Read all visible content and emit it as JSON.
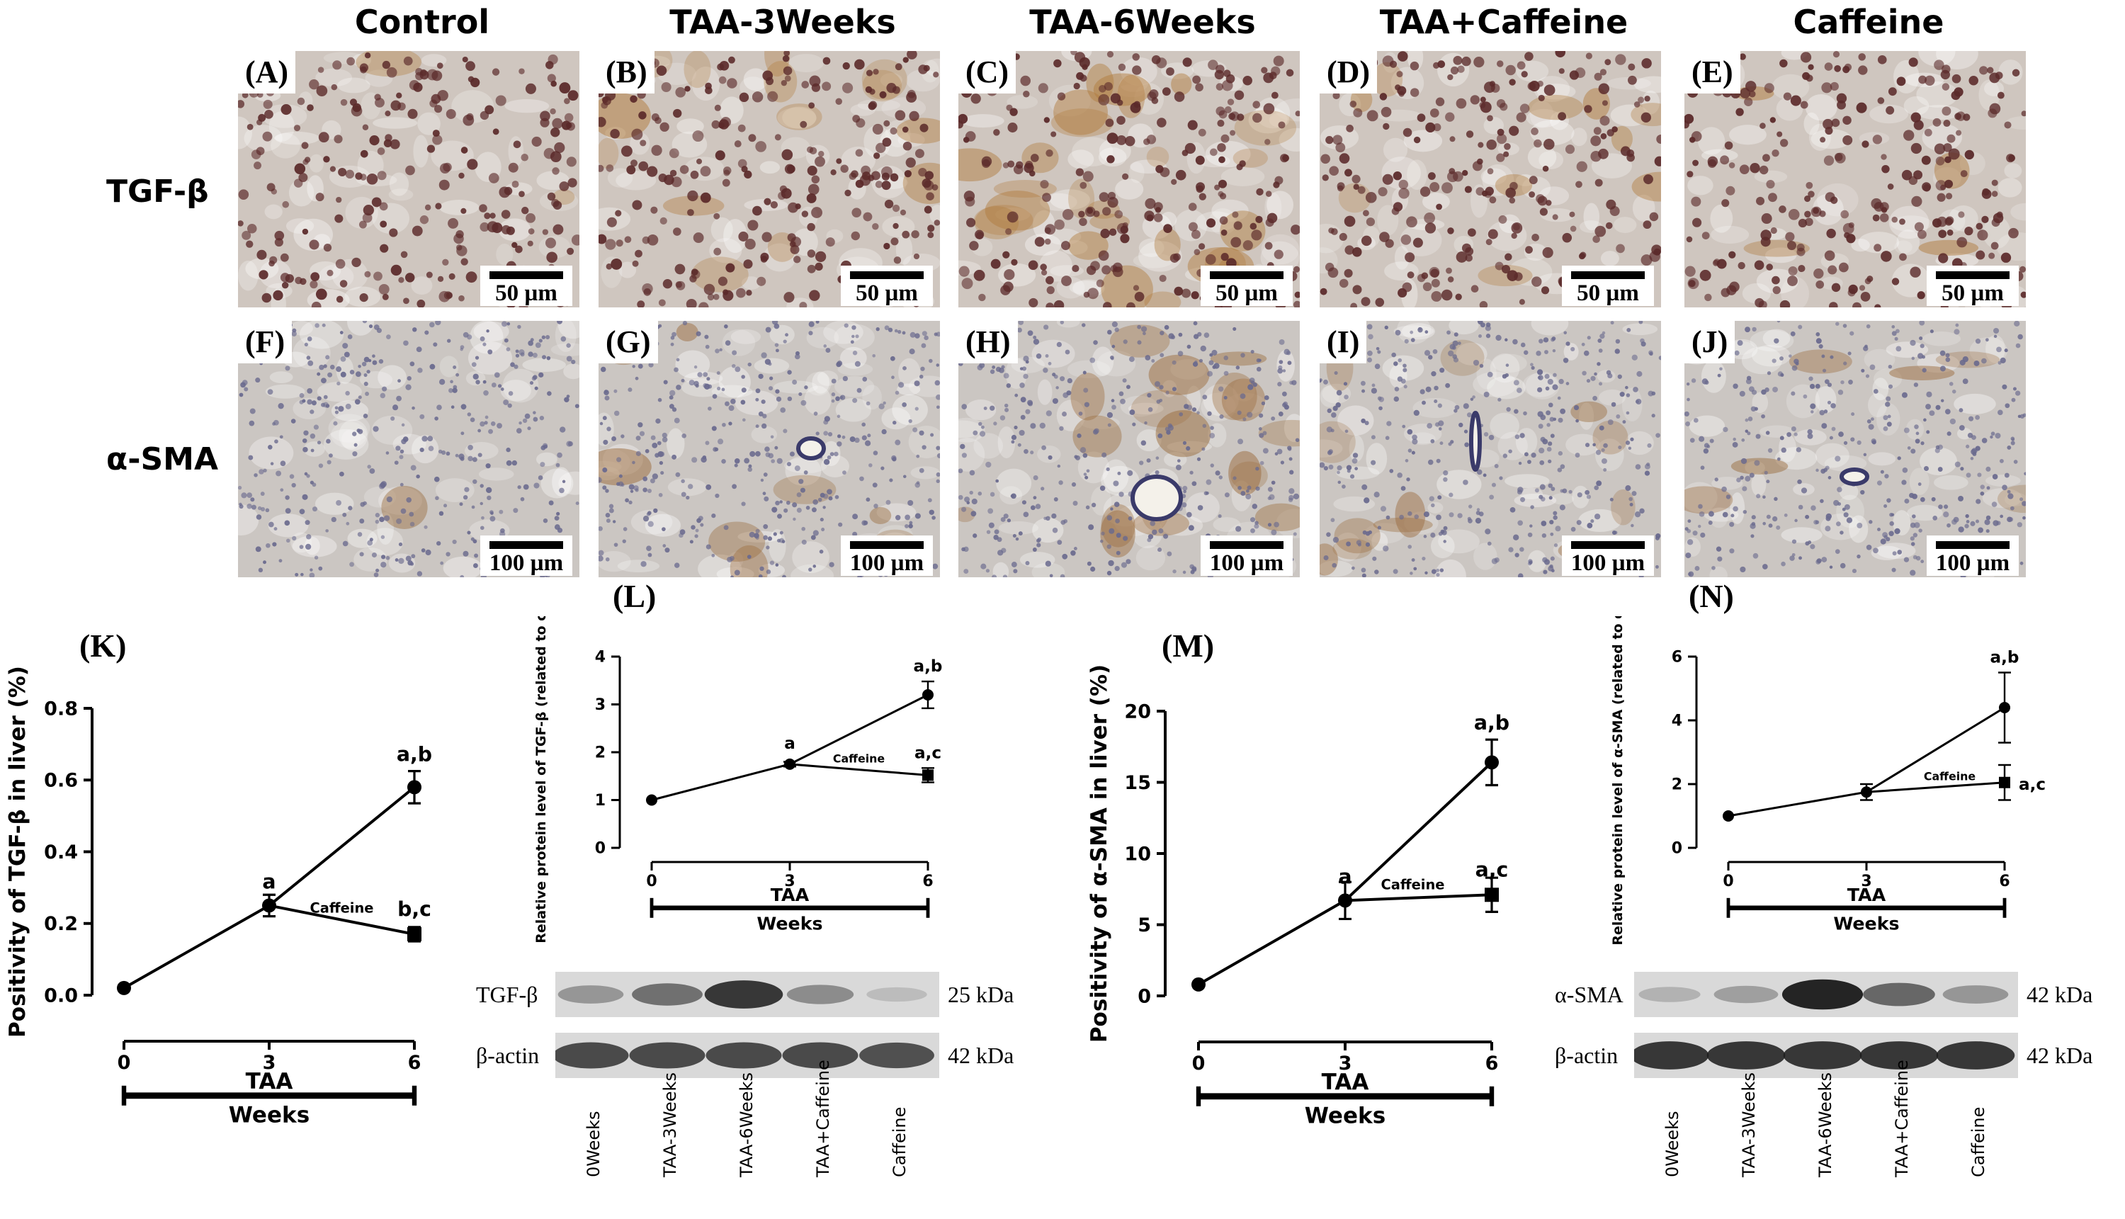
{
  "column_headers": [
    "Control",
    "TAA-3Weeks",
    "TAA-6Weeks",
    "TAA+Caffeine",
    "Caffeine"
  ],
  "row_headers": {
    "tgf": "TGF-β",
    "sma": "α-SMA"
  },
  "micrographs": {
    "tgf_row": [
      {
        "label": "(A)",
        "scale": "50 µm"
      },
      {
        "label": "(B)",
        "scale": "50 µm"
      },
      {
        "label": "(C)",
        "scale": "50 µm"
      },
      {
        "label": "(D)",
        "scale": "50 µm"
      },
      {
        "label": "(E)",
        "scale": "50 µm"
      }
    ],
    "sma_row": [
      {
        "label": "(F)",
        "scale": "100 µm"
      },
      {
        "label": "(G)",
        "scale": "100 µm"
      },
      {
        "label": "(H)",
        "scale": "100 µm"
      },
      {
        "label": "(I)",
        "scale": "100 µm"
      },
      {
        "label": "(J)",
        "scale": "100 µm"
      }
    ]
  },
  "graph_labels": {
    "K": "(K)",
    "L": "(L)",
    "M": "(M)",
    "N": "(N)"
  },
  "chart_data": [
    {
      "id": "K",
      "type": "line",
      "ylabel": "Positivity of TGF-β in liver (%)",
      "xlabel": "TAA",
      "xlabel2": "Weeks",
      "ylim": [
        0,
        0.8
      ],
      "yticks": [
        "0.0",
        "0.2",
        "0.4",
        "0.6",
        "0.8"
      ],
      "xticks": [
        "0",
        "3",
        "6"
      ],
      "series": [
        {
          "name": "",
          "x": [
            0,
            3,
            6
          ],
          "y": [
            0.02,
            0.25,
            0.58
          ],
          "err": [
            0,
            0.03,
            0.045
          ],
          "marker": "circle",
          "labels": [
            "",
            "a",
            "a,b"
          ]
        },
        {
          "name": "Caffeine",
          "x": [
            3,
            6
          ],
          "y": [
            0.25,
            0.17
          ],
          "err": [
            0,
            0.02
          ],
          "marker": "square",
          "labels": [
            "",
            "b,c"
          ]
        }
      ]
    },
    {
      "id": "L",
      "type": "line",
      "ylabel": "Relative protein level of TGF-β (related to control)",
      "xlabel": "TAA",
      "xlabel2": "Weeks",
      "ylim": [
        0,
        4
      ],
      "yticks": [
        "0",
        "1",
        "2",
        "3",
        "4"
      ],
      "xticks": [
        "0",
        "3",
        "6"
      ],
      "series": [
        {
          "name": "",
          "x": [
            0,
            3,
            6
          ],
          "y": [
            1.0,
            1.75,
            3.2
          ],
          "err": [
            0,
            0.05,
            0.28
          ],
          "marker": "circle",
          "labels": [
            "",
            "a",
            "a,b"
          ]
        },
        {
          "name": "Caffeine",
          "x": [
            3,
            6
          ],
          "y": [
            1.75,
            1.52
          ],
          "err": [
            0,
            0.15
          ],
          "marker": "square",
          "labels": [
            "",
            "a,c"
          ]
        }
      ]
    },
    {
      "id": "M",
      "type": "line",
      "ylabel": "Positivity of α-SMA in liver (%)",
      "xlabel": "TAA",
      "xlabel2": "Weeks",
      "ylim": [
        0,
        20
      ],
      "yticks": [
        "0",
        "5",
        "10",
        "15",
        "20"
      ],
      "xticks": [
        "0",
        "3",
        "6"
      ],
      "series": [
        {
          "name": "",
          "x": [
            0,
            3,
            6
          ],
          "y": [
            0.8,
            6.7,
            16.4
          ],
          "err": [
            0,
            1.3,
            1.6
          ],
          "marker": "circle",
          "labels": [
            "",
            "a",
            "a,b"
          ]
        },
        {
          "name": "Caffeine",
          "x": [
            3,
            6
          ],
          "y": [
            6.7,
            7.1
          ],
          "err": [
            0,
            1.2
          ],
          "marker": "square",
          "labels": [
            "",
            "a,c"
          ]
        }
      ]
    },
    {
      "id": "N",
      "type": "line",
      "ylabel": "Relative protein level of α-SMA (related to control)",
      "xlabel": "TAA",
      "xlabel2": "Weeks",
      "ylim": [
        0,
        6
      ],
      "yticks": [
        "0",
        "2",
        "4",
        "6"
      ],
      "xticks": [
        "0",
        "3",
        "6"
      ],
      "series": [
        {
          "name": "",
          "x": [
            0,
            3,
            6
          ],
          "y": [
            1.0,
            1.75,
            4.4
          ],
          "err": [
            0,
            0.25,
            1.1
          ],
          "marker": "circle",
          "labels": [
            "",
            "",
            "a,b"
          ]
        },
        {
          "name": "Caffeine",
          "x": [
            3,
            6
          ],
          "y": [
            1.75,
            2.05
          ],
          "err": [
            0,
            0.55
          ],
          "marker": "square",
          "labels": [
            "",
            "a,c"
          ]
        }
      ]
    }
  ],
  "blots": [
    {
      "id": "L",
      "rows": [
        {
          "name": "TGF-β",
          "kda": "25 kDa",
          "intensity": [
            0.35,
            0.55,
            0.85,
            0.4,
            0.15
          ]
        },
        {
          "name": "β-actin",
          "kda": "42 kDa",
          "intensity": [
            0.75,
            0.75,
            0.75,
            0.75,
            0.72
          ]
        }
      ],
      "lanes": [
        "0Weeks",
        "TAA-3Weeks",
        "TAA-6Weeks",
        "TAA+Caffeine",
        "Caffeine"
      ]
    },
    {
      "id": "N",
      "rows": [
        {
          "name": "α-SMA",
          "kda": "42 kDa",
          "intensity": [
            0.2,
            0.3,
            0.95,
            0.6,
            0.35
          ]
        },
        {
          "name": "β-actin",
          "kda": "42 kDa",
          "intensity": [
            0.85,
            0.85,
            0.85,
            0.85,
            0.85
          ]
        }
      ],
      "lanes": [
        "0Weeks",
        "TAA-3Weeks",
        "TAA-6Weeks",
        "TAA+Caffeine",
        "Caffeine"
      ]
    }
  ],
  "colors": {
    "tgf_tissue": "#cfc6bf",
    "tgf_nucleus": "#5b2a2a",
    "tgf_brown": "#b07a3a",
    "sma_tissue": "#cbc6c2",
    "sma_nucleus": "#6a6a8e",
    "sma_brown": "#9a6a3a",
    "band": "#1a1a1a"
  }
}
